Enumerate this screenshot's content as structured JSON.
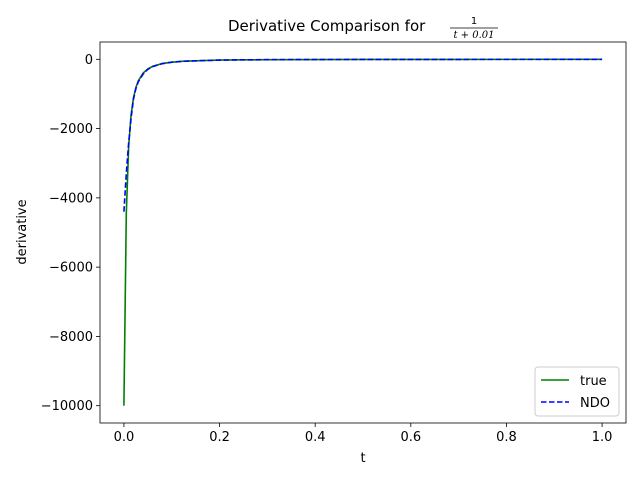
{
  "chart_data": {
    "type": "line",
    "title": {
      "prefix": "Derivative Comparison for ",
      "numerator": "1",
      "denominator": "t + 0.01"
    },
    "xlabel": "t",
    "ylabel": "derivative",
    "xlim": [
      -0.05,
      1.05
    ],
    "ylim": [
      -10500,
      500
    ],
    "xticks": [
      0.0,
      0.2,
      0.4,
      0.6,
      0.8,
      1.0
    ],
    "xtick_labels": [
      "0.0",
      "0.2",
      "0.4",
      "0.6",
      "0.8",
      "1.0"
    ],
    "yticks": [
      0,
      -2000,
      -4000,
      -6000,
      -8000,
      -10000
    ],
    "ytick_labels": [
      "0",
      "−2000",
      "−4000",
      "−6000",
      "−8000",
      "−10000"
    ],
    "grid": false,
    "legend_position": "lower-right",
    "series": [
      {
        "name": "true",
        "color": "#008000",
        "style": "solid",
        "x": [
          0.0,
          0.005,
          0.01,
          0.015,
          0.02,
          0.025,
          0.03,
          0.04,
          0.05,
          0.06,
          0.08,
          0.1,
          0.125,
          0.15,
          0.2,
          0.25,
          0.3,
          0.4,
          0.5,
          0.6,
          0.7,
          0.8,
          0.9,
          1.0
        ],
        "values": [
          -10000,
          -4444,
          -2500,
          -1600,
          -1111,
          -816,
          -625,
          -400,
          -278,
          -204,
          -123,
          -83,
          -55,
          -44,
          -23,
          -15,
          -11,
          -6,
          -4,
          -3,
          -2,
          -1.5,
          -1.2,
          -1
        ]
      },
      {
        "name": "NDO",
        "color": "#0000ff",
        "style": "dashed",
        "x": [
          0.0,
          0.005,
          0.01,
          0.015,
          0.02,
          0.025,
          0.03,
          0.04,
          0.05,
          0.06,
          0.08,
          0.1,
          0.125,
          0.15,
          0.2,
          0.25,
          0.3,
          0.4,
          0.5,
          0.6,
          0.7,
          0.8,
          0.9,
          1.0
        ],
        "values": [
          -4400,
          -3300,
          -2400,
          -1700,
          -1150,
          -850,
          -650,
          -430,
          -290,
          -210,
          -125,
          -84,
          -56,
          -44,
          -23,
          -15,
          -11,
          -6,
          -4,
          -3,
          -2,
          -1.5,
          -1.2,
          -1
        ]
      }
    ]
  }
}
